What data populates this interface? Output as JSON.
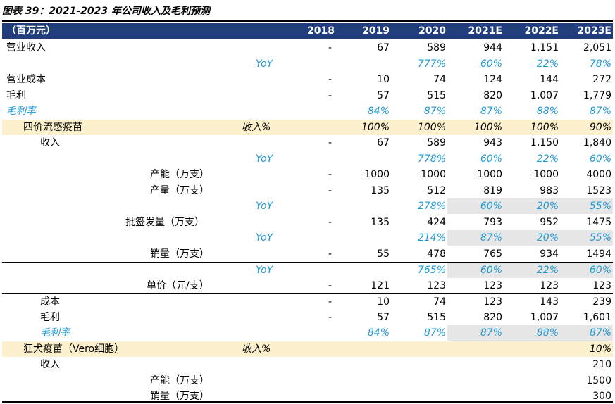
{
  "title": "图表 39：2021-2023 年公司收入及毛利预测",
  "header": [
    "（百万元）",
    "2018",
    "2019",
    "2020",
    "2021E",
    "2022E",
    "2023E"
  ],
  "rows": [
    {
      "label": "营业收入",
      "indent": 6,
      "vals": [
        "-",
        "67",
        "589",
        "944",
        "1,151",
        "2,051"
      ]
    },
    {
      "label": "YoY",
      "blue": true,
      "labelpos": "yoy1",
      "vals": [
        "",
        "",
        "777%",
        "60%",
        "22%",
        "78%"
      ],
      "valblue": true
    },
    {
      "label": "营业成本",
      "indent": 6,
      "vals": [
        "-",
        "10",
        "74",
        "124",
        "144",
        "272"
      ]
    },
    {
      "label": "毛利",
      "indent": 6,
      "vals": [
        "-",
        "57",
        "515",
        "820",
        "1,007",
        "1,779"
      ]
    },
    {
      "label": "毛利率",
      "indent": 6,
      "blue": true,
      "vals": [
        "",
        "84%",
        "87%",
        "87%",
        "88%",
        "87%"
      ],
      "valblue": true
    },
    {
      "label": "四价流感疫苗",
      "indent": 30,
      "hl": true,
      "sub": "收入%",
      "vals": [
        "",
        "100%",
        "100%",
        "100%",
        "100%",
        "90%"
      ],
      "valitalic": true
    },
    {
      "label": "收入",
      "indent": 54,
      "vals": [
        "-",
        "67",
        "589",
        "943",
        "1,150",
        "1,840"
      ]
    },
    {
      "label": "YoY",
      "blue": true,
      "labelpos": "yoy1",
      "vals": [
        "",
        "",
        "778%",
        "60%",
        "22%",
        "60%"
      ],
      "valblue": true
    },
    {
      "label": "产能（万支）",
      "indent": 210,
      "vals": [
        "-",
        "1000",
        "1000",
        "1000",
        "1000",
        "4000"
      ]
    },
    {
      "label": "产量（万支）",
      "indent": 210,
      "vals": [
        "-",
        "135",
        "512",
        "819",
        "983",
        "1523"
      ]
    },
    {
      "label": "YoY",
      "blue": true,
      "labelpos": "yoy1",
      "vals": [
        "",
        "",
        "278%",
        "60%",
        "20%",
        "55%"
      ],
      "valblue": true,
      "gray": true
    },
    {
      "label": "批签发量（万支）",
      "indent": 175,
      "vals": [
        "-",
        "135",
        "424",
        "793",
        "952",
        "1475"
      ]
    },
    {
      "label": "YoY",
      "blue": true,
      "labelpos": "yoy1",
      "vals": [
        "",
        "",
        "214%",
        "87%",
        "20%",
        "55%"
      ],
      "valblue": true,
      "gray": true
    },
    {
      "label": "销量（万支）",
      "indent": 210,
      "vals": [
        "-",
        "55",
        "478",
        "765",
        "934",
        "1494"
      ]
    },
    {
      "label": "YoY",
      "blue": true,
      "labelpos": "yoy1",
      "vals": [
        "",
        "",
        "765%",
        "60%",
        "22%",
        "60%"
      ],
      "valblue": true,
      "gray": true,
      "topline": true
    },
    {
      "label": "单价（元/支）",
      "indent": 205,
      "vals": [
        "-",
        "121",
        "123",
        "123",
        "123",
        "123"
      ]
    },
    {
      "label": "成本",
      "indent": 54,
      "vals": [
        "-",
        "10",
        "74",
        "123",
        "143",
        "239"
      ],
      "topline": true
    },
    {
      "label": "毛利",
      "indent": 54,
      "vals": [
        "-",
        "57",
        "515",
        "820",
        "1,007",
        "1,601"
      ]
    },
    {
      "label": "毛利率",
      "indent": 54,
      "blue": true,
      "vals": [
        "",
        "84%",
        "87%",
        "87%",
        "88%",
        "87%"
      ],
      "valblue": true,
      "gray": true
    },
    {
      "label": "狂犬疫苗（Vero细胞）",
      "indent": 30,
      "hl": true,
      "sub": "收入%",
      "vals": [
        "",
        "",
        "",
        "",
        "",
        "10%"
      ],
      "valitalic": true
    },
    {
      "label": "收入",
      "indent": 54,
      "vals": [
        "",
        "",
        "",
        "",
        "",
        "210"
      ]
    },
    {
      "label": "产能（万支）",
      "indent": 210,
      "vals": [
        "",
        "",
        "",
        "",
        "",
        "1500"
      ]
    },
    {
      "label": "销量（万支）",
      "indent": 210,
      "vals": [
        "",
        "",
        "",
        "",
        "",
        "300"
      ]
    }
  ]
}
